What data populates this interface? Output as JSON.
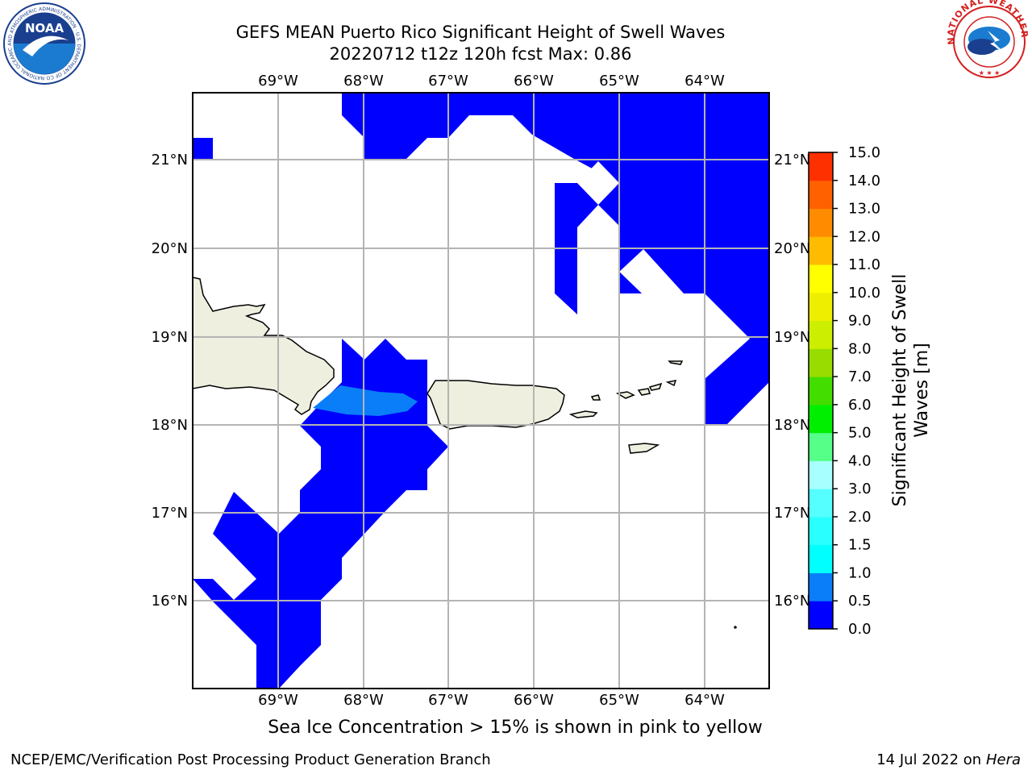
{
  "title": {
    "line1": "GEFS MEAN Puerto Rico Significant Height of Swell Waves",
    "line2": "20220712 t12z 120h fcst   Max: 0.86"
  },
  "map": {
    "lon_labels": [
      "69°W",
      "68°W",
      "67°W",
      "66°W",
      "65°W",
      "64°W"
    ],
    "lon_values": [
      -69,
      -68,
      -67,
      -66,
      -65,
      -64
    ],
    "lat_labels": [
      "21°N",
      "20°N",
      "19°N",
      "18°N",
      "17°N",
      "16°N"
    ],
    "lat_values": [
      21,
      20,
      19,
      18,
      17,
      16
    ],
    "extent": {
      "lon_min": -69.99,
      "lon_max": -63.24,
      "lat_min": 15.01,
      "lat_max": 21.75
    },
    "land_color": "#efefe0",
    "grid_color": "#b4b4b4"
  },
  "colorbar": {
    "label_line1": "Significant Height of Swell",
    "label_line2": "Waves [m]",
    "levels": [
      "0.0",
      "0.5",
      "1.0",
      "1.5",
      "2.0",
      "3.0",
      "4.0",
      "5.0",
      "6.0",
      "7.0",
      "8.0",
      "9.0",
      "10.0",
      "11.0",
      "12.0",
      "13.0",
      "14.0",
      "15.0"
    ],
    "colors": [
      "#0000ff",
      "#0a7ef9",
      "#00ffff",
      "#2affff",
      "#55ffff",
      "#a8ffff",
      "#55ff88",
      "#00ee00",
      "#44dd00",
      "#99dd00",
      "#ccee00",
      "#eeee00",
      "#ffff00",
      "#ffbb00",
      "#ff8c00",
      "#ff6000",
      "#ff3000",
      "#ff0000"
    ]
  },
  "caption": "Sea Ice Concentration > 15% is shown in pink to yellow",
  "footer": {
    "left": "NCEP/EMC/Verification Post Processing Product Generation Branch",
    "right_prefix": "14 Jul 2022 on ",
    "right_host": "Hera"
  },
  "logos": {
    "noaa_text": "NOAA",
    "noaa_ring": "NATIONAL OCEANIC AND ATMOSPHERIC ADMINISTRATION · U.S. DEPARTMENT OF COMMERCE",
    "nws_ring": "NATIONAL WEATHER SERVICE"
  }
}
